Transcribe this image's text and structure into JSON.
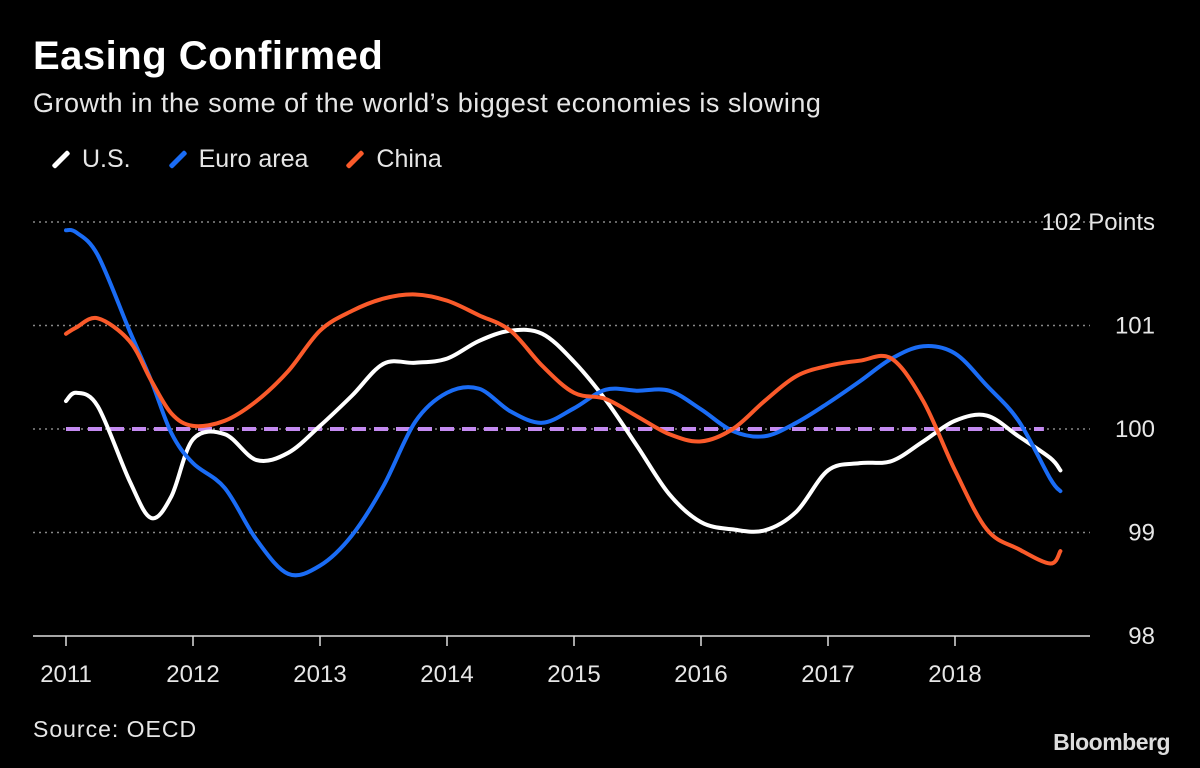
{
  "header": {
    "title": "Easing Confirmed",
    "subtitle": "Growth in the some of the world’s biggest economies is slowing"
  },
  "footer": {
    "source": "Source: OECD",
    "logo": "Bloomberg"
  },
  "colors": {
    "us": "#ffffff",
    "euro": "#1a6cf5",
    "china": "#fa5a2a",
    "reference": "#c38af0",
    "grid": "#888888"
  },
  "chart_data": {
    "type": "line",
    "title": "Easing Confirmed",
    "xlabel": "",
    "ylabel": "Points",
    "xlim": [
      2011,
      2018.83
    ],
    "ylim": [
      98,
      102
    ],
    "y_ticks": [
      98,
      99,
      100,
      101,
      102
    ],
    "y_tick_labels": [
      "98",
      "99",
      "100",
      "101",
      "102 Points"
    ],
    "x_ticks": [
      2011,
      2012,
      2013,
      2014,
      2015,
      2016,
      2017,
      2018
    ],
    "x_tick_labels": [
      "2011",
      "2012",
      "2013",
      "2014",
      "2015",
      "2016",
      "2017",
      "2018"
    ],
    "grid": "horizontal dotted",
    "legend_placement": "top-left",
    "reference_line": {
      "y": 100,
      "style": "dashed"
    },
    "x": [
      2011.0,
      2011.08,
      2011.25,
      2011.5,
      2011.67,
      2011.83,
      2012.0,
      2012.25,
      2012.5,
      2012.75,
      2013.0,
      2013.25,
      2013.5,
      2013.75,
      2014.0,
      2014.25,
      2014.5,
      2014.75,
      2015.0,
      2015.25,
      2015.5,
      2015.75,
      2016.0,
      2016.25,
      2016.5,
      2016.75,
      2017.0,
      2017.25,
      2017.5,
      2017.75,
      2018.0,
      2018.25,
      2018.5,
      2018.75,
      2018.83
    ],
    "series": [
      {
        "name": "U.S.",
        "key": "us",
        "values": [
          100.27,
          100.35,
          100.22,
          99.5,
          99.14,
          99.35,
          99.9,
          99.95,
          99.7,
          99.77,
          100.03,
          100.32,
          100.63,
          100.64,
          100.68,
          100.85,
          100.95,
          100.92,
          100.65,
          100.28,
          99.83,
          99.37,
          99.1,
          99.03,
          99.02,
          99.2,
          99.6,
          99.67,
          99.69,
          99.88,
          100.08,
          100.13,
          99.93,
          99.72,
          99.6
        ]
      },
      {
        "name": "Euro area",
        "key": "euro",
        "values": [
          101.92,
          101.9,
          101.68,
          100.95,
          100.47,
          99.96,
          99.67,
          99.43,
          98.93,
          98.6,
          98.68,
          98.97,
          99.45,
          100.07,
          100.35,
          100.39,
          100.17,
          100.06,
          100.2,
          100.38,
          100.37,
          100.37,
          100.19,
          99.98,
          99.93,
          100.06,
          100.25,
          100.46,
          100.68,
          100.8,
          100.73,
          100.42,
          100.08,
          99.52,
          99.4
        ]
      },
      {
        "name": "China",
        "key": "china",
        "values": [
          100.92,
          100.98,
          101.07,
          100.85,
          100.47,
          100.15,
          100.03,
          100.08,
          100.27,
          100.56,
          100.95,
          101.14,
          101.26,
          101.3,
          101.24,
          101.1,
          100.95,
          100.61,
          100.35,
          100.29,
          100.12,
          99.95,
          99.88,
          100.0,
          100.27,
          100.51,
          100.61,
          100.66,
          100.68,
          100.27,
          99.6,
          99.03,
          98.84,
          98.7,
          98.82
        ]
      }
    ]
  }
}
